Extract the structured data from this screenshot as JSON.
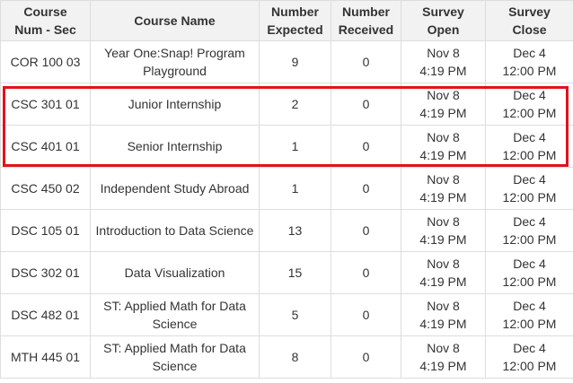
{
  "table": {
    "headers": [
      [
        "Course",
        "Num - Sec"
      ],
      [
        "Course Name"
      ],
      [
        "Number",
        "Expected"
      ],
      [
        "Number",
        "Received"
      ],
      [
        "Survey",
        "Open"
      ],
      [
        "Survey",
        "Close"
      ]
    ],
    "rows": [
      {
        "num": "COR 100 03",
        "name": [
          "Year One:Snap! Program",
          "Playground"
        ],
        "expected": "9",
        "received": "0",
        "open": [
          "Nov 8",
          "4:19 PM"
        ],
        "close": [
          "Dec 4",
          "12:00 PM"
        ]
      },
      {
        "num": "CSC 301 01",
        "name": [
          "Junior Internship"
        ],
        "expected": "2",
        "received": "0",
        "open": [
          "Nov 8",
          "4:19 PM"
        ],
        "close": [
          "Dec 4",
          "12:00 PM"
        ]
      },
      {
        "num": "CSC 401 01",
        "name": [
          "Senior Internship"
        ],
        "expected": "1",
        "received": "0",
        "open": [
          "Nov 8",
          "4:19 PM"
        ],
        "close": [
          "Dec 4",
          "12:00 PM"
        ]
      },
      {
        "num": "CSC 450 02",
        "name": [
          "Independent Study Abroad"
        ],
        "expected": "1",
        "received": "0",
        "open": [
          "Nov 8",
          "4:19 PM"
        ],
        "close": [
          "Dec 4",
          "12:00 PM"
        ]
      },
      {
        "num": "DSC 105 01",
        "name": [
          "Introduction to Data Science"
        ],
        "expected": "13",
        "received": "0",
        "open": [
          "Nov 8",
          "4:19 PM"
        ],
        "close": [
          "Dec 4",
          "12:00 PM"
        ]
      },
      {
        "num": "DSC 302 01",
        "name": [
          "Data Visualization"
        ],
        "expected": "15",
        "received": "0",
        "open": [
          "Nov 8",
          "4:19 PM"
        ],
        "close": [
          "Dec 4",
          "12:00 PM"
        ]
      },
      {
        "num": "DSC 482 01",
        "name": [
          "ST: Applied Math for Data",
          "Science"
        ],
        "expected": "5",
        "received": "0",
        "open": [
          "Nov 8",
          "4:19 PM"
        ],
        "close": [
          "Dec 4",
          "12:00 PM"
        ]
      },
      {
        "num": "MTH 445 01",
        "name": [
          "ST: Applied Math for Data",
          "Science"
        ],
        "expected": "8",
        "received": "0",
        "open": [
          "Nov 8",
          "4:19 PM"
        ],
        "close": [
          "Dec 4",
          "12:00 PM"
        ]
      }
    ]
  },
  "colors": {
    "highlight_border": "#e1121b",
    "header_background": "#f2f2f2",
    "grid": "#dddddd"
  }
}
